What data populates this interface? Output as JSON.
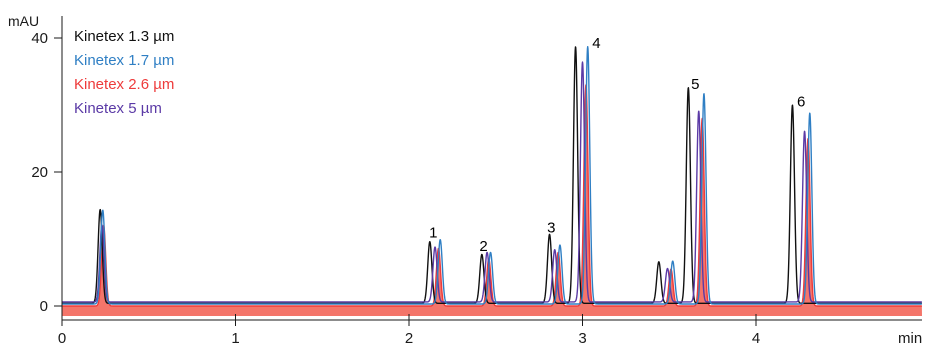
{
  "chart_data": {
    "type": "line",
    "title": "",
    "xlabel": "min",
    "ylabel": "mAU",
    "xlim": [
      0,
      5
    ],
    "ylim": [
      -1.5,
      42
    ],
    "x_ticks": [
      0,
      1,
      2,
      3,
      4
    ],
    "y_ticks": [
      0,
      20,
      40
    ],
    "grid": false,
    "legend_position": "top-left",
    "series": [
      {
        "name": "Kinetex 1.3 µm",
        "color": "#111111",
        "baseline": 0.4,
        "peaks": [
          {
            "x": 0.22,
            "y": 14.0
          },
          {
            "x": 2.12,
            "y": 9.2
          },
          {
            "x": 2.42,
            "y": 7.3
          },
          {
            "x": 2.81,
            "y": 10.3
          },
          {
            "x": 2.96,
            "y": 38.3
          },
          {
            "x": 3.44,
            "y": 6.2
          },
          {
            "x": 3.61,
            "y": 32.2
          },
          {
            "x": 4.21,
            "y": 29.6
          }
        ]
      },
      {
        "name": "Kinetex 1.7 µm",
        "color": "#2f7fc4",
        "baseline": 0.3,
        "peaks": [
          {
            "x": 0.235,
            "y": 14.0
          },
          {
            "x": 2.18,
            "y": 9.6
          },
          {
            "x": 2.47,
            "y": 7.7
          },
          {
            "x": 2.87,
            "y": 8.8
          },
          {
            "x": 3.03,
            "y": 38.4
          },
          {
            "x": 3.52,
            "y": 6.4
          },
          {
            "x": 3.7,
            "y": 31.4
          },
          {
            "x": 4.31,
            "y": 28.5
          }
        ]
      },
      {
        "name": "Kinetex 2.6 µm",
        "color": "#ee3b3b",
        "fill": "#f4756a",
        "baseline": 0.0,
        "peaks": [
          {
            "x": 0.24,
            "y": 12.0
          },
          {
            "x": 2.17,
            "y": 8.6
          },
          {
            "x": 2.46,
            "y": 7.0
          },
          {
            "x": 2.86,
            "y": 8.0
          },
          {
            "x": 3.02,
            "y": 33.0
          },
          {
            "x": 3.51,
            "y": 5.5
          },
          {
            "x": 3.69,
            "y": 28.0
          },
          {
            "x": 4.3,
            "y": 25.0
          }
        ]
      },
      {
        "name": "Kinetex 5 µm",
        "color": "#5b3aa6",
        "baseline": 0.6,
        "peaks": [
          {
            "x": 0.23,
            "y": 11.5
          },
          {
            "x": 2.15,
            "y": 8.2
          },
          {
            "x": 2.45,
            "y": 7.4
          },
          {
            "x": 2.84,
            "y": 7.8
          },
          {
            "x": 3.0,
            "y": 35.8
          },
          {
            "x": 3.49,
            "y": 5.0
          },
          {
            "x": 3.67,
            "y": 28.5
          },
          {
            "x": 4.28,
            "y": 25.5
          }
        ]
      }
    ],
    "annotations": [
      {
        "text": "1",
        "x": 2.14,
        "y": 10.2
      },
      {
        "text": "2",
        "x": 2.43,
        "y": 8.2
      },
      {
        "text": "3",
        "x": 2.82,
        "y": 11.0
      },
      {
        "text": "4",
        "x": 3.08,
        "y": 38.5
      },
      {
        "text": "5",
        "x": 3.65,
        "y": 32.4
      },
      {
        "text": "6",
        "x": 4.26,
        "y": 29.8
      }
    ]
  }
}
